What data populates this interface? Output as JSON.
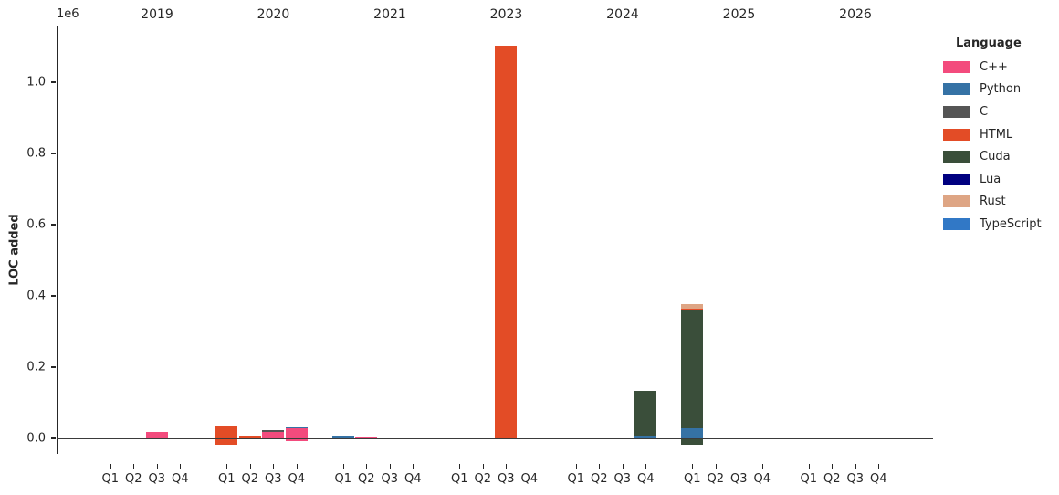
{
  "figure": {
    "ylabel": "LOC added",
    "y_offset_label": "1e6"
  },
  "legend": {
    "title": "Language"
  },
  "chart_data": {
    "type": "bar",
    "stacked": true,
    "title": "",
    "xlabel": "",
    "ylabel": "LOC added",
    "y_unit_multiplier_label": "1e6",
    "ylim": [
      -44000,
      1160000
    ],
    "grid": false,
    "legend_position": "upper right, outside axes",
    "yticks": [
      {
        "label": "0.0",
        "value": 0
      },
      {
        "label": "0.2",
        "value": 200000
      },
      {
        "label": "0.4",
        "value": 400000
      },
      {
        "label": "0.6",
        "value": 600000
      },
      {
        "label": "0.8",
        "value": 800000
      },
      {
        "label": "1.0",
        "value": 1000000
      }
    ],
    "years": [
      "2019",
      "2020",
      "2021",
      "2023",
      "2024",
      "2025",
      "2026"
    ],
    "quarters": [
      "Q1",
      "Q2",
      "Q3",
      "Q4"
    ],
    "languages": [
      {
        "name": "C++",
        "color": "#f34b7d"
      },
      {
        "name": "Python",
        "color": "#3572a5"
      },
      {
        "name": "C",
        "color": "#555555"
      },
      {
        "name": "HTML",
        "color": "#e34c26"
      },
      {
        "name": "Cuda",
        "color": "#3a4e3a"
      },
      {
        "name": "Lua",
        "color": "#000080"
      },
      {
        "name": "Rust",
        "color": "#dea584"
      },
      {
        "name": "TypeScript",
        "color": "#3178c6"
      }
    ],
    "bars": [
      {
        "year": "2019",
        "quarter": "Q3",
        "segments": [
          {
            "language": "C++",
            "from": 0,
            "to": 18000
          }
        ]
      },
      {
        "year": "2020",
        "quarter": "Q1",
        "segments": [
          {
            "language": "HTML",
            "from": -18000,
            "to": 36000
          }
        ]
      },
      {
        "year": "2020",
        "quarter": "Q2",
        "segments": [
          {
            "language": "HTML",
            "from": 0,
            "to": 8000
          }
        ]
      },
      {
        "year": "2020",
        "quarter": "Q3",
        "segments": [
          {
            "language": "C++",
            "from": 0,
            "to": 18000
          },
          {
            "language": "C",
            "from": 18000,
            "to": 23000
          }
        ]
      },
      {
        "year": "2020",
        "quarter": "Q4",
        "segments": [
          {
            "language": "C++",
            "from": -8000,
            "to": 28000
          },
          {
            "language": "Python",
            "from": 28000,
            "to": 34000
          }
        ]
      },
      {
        "year": "2021",
        "quarter": "Q1",
        "segments": [
          {
            "language": "Python",
            "from": 0,
            "to": 7000
          }
        ]
      },
      {
        "year": "2021",
        "quarter": "Q2",
        "segments": [
          {
            "language": "C++",
            "from": 0,
            "to": 5000
          }
        ]
      },
      {
        "year": "2023",
        "quarter": "Q3",
        "segments": [
          {
            "language": "HTML",
            "from": 0,
            "to": 1103000
          }
        ]
      },
      {
        "year": "2024",
        "quarter": "Q4",
        "segments": [
          {
            "language": "Python",
            "from": 0,
            "to": 8000
          },
          {
            "language": "Cuda",
            "from": 8000,
            "to": 133000
          }
        ]
      },
      {
        "year": "2025",
        "quarter": "Q1",
        "segments": [
          {
            "language": "Cuda",
            "from": -18000,
            "to": 0
          },
          {
            "language": "Python",
            "from": 0,
            "to": 27000
          },
          {
            "language": "Cuda",
            "from": 27000,
            "to": 361000
          },
          {
            "language": "HTML",
            "from": 361000,
            "to": 364000
          },
          {
            "language": "Rust",
            "from": 364000,
            "to": 378000
          }
        ]
      }
    ]
  }
}
